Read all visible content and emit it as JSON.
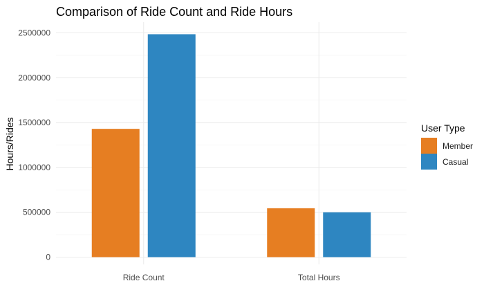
{
  "chart_data": {
    "type": "bar",
    "title": "Comparison of Ride Count and Ride Hours",
    "xlabel": "",
    "ylabel": "Hours/Rides",
    "categories": [
      "Ride Count",
      "Total Hours"
    ],
    "series": [
      {
        "name": "Member",
        "values": [
          1430000,
          545000
        ]
      },
      {
        "name": "Casual",
        "values": [
          2485000,
          500000
        ]
      }
    ],
    "ylim": [
      0,
      2500000
    ],
    "yticks": [
      0,
      500000,
      1000000,
      1500000,
      2000000,
      2500000
    ],
    "ytick_labels": [
      "0",
      "500000",
      "1000000",
      "1500000",
      "2000000",
      "2500000"
    ],
    "grid": true,
    "legend": {
      "title": "User Type",
      "position": "right"
    },
    "colors": {
      "Member": "#e67e22",
      "Casual": "#2e86c1"
    }
  }
}
